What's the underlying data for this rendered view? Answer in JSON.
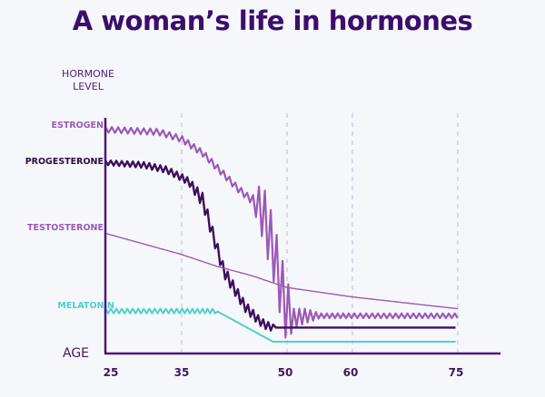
{
  "chart_data": {
    "type": "line",
    "title": "A woman’s life in hormones",
    "ylabel": "HORMONE\nLEVEL",
    "xlabel": "AGE",
    "x_ticks": [
      25,
      35,
      50,
      60,
      75
    ],
    "xlim": [
      25,
      81
    ],
    "ylim": [
      0,
      100
    ],
    "grid": "vertical dashed lines at 35, 50, 60, 75",
    "legend": "labels at left of y-axis",
    "series": [
      {
        "name": "ESTROGEN",
        "color": "#9b59b6",
        "style": "oscillating",
        "points": [
          [
            25,
            95
          ],
          [
            32,
            94
          ],
          [
            35,
            91
          ],
          [
            38,
            85
          ],
          [
            41,
            76
          ],
          [
            43,
            70
          ],
          [
            45,
            65
          ],
          [
            46.5,
            61
          ],
          [
            47,
            55
          ],
          [
            48,
            45
          ],
          [
            49,
            30
          ],
          [
            50,
            18
          ],
          [
            51,
            15
          ],
          [
            53,
            16
          ],
          [
            55,
            16
          ],
          [
            60,
            16
          ],
          [
            75,
            16
          ]
        ],
        "amplitude": [
          [
            25,
            1.2
          ],
          [
            45,
            1.5
          ],
          [
            46.5,
            12
          ],
          [
            50,
            14
          ],
          [
            51,
            4
          ],
          [
            53,
            3
          ],
          [
            55,
            1
          ],
          [
            75,
            1
          ]
        ]
      },
      {
        "name": "PROGESTERONE",
        "color": "#3b0f5c",
        "style": "oscillating",
        "points": [
          [
            25,
            81
          ],
          [
            30,
            80
          ],
          [
            33,
            78
          ],
          [
            36,
            73
          ],
          [
            38,
            65
          ],
          [
            39,
            55
          ],
          [
            40,
            45
          ],
          [
            41,
            35
          ],
          [
            42,
            30
          ],
          [
            43,
            25
          ],
          [
            44,
            20
          ],
          [
            45,
            17
          ],
          [
            46,
            14
          ],
          [
            47,
            12
          ],
          [
            48,
            11
          ],
          [
            48.3,
            11
          ],
          [
            75,
            11
          ]
        ],
        "amplitude": [
          [
            25,
            1
          ],
          [
            36,
            1.5
          ],
          [
            38,
            3
          ],
          [
            45,
            2
          ],
          [
            48,
            1.5
          ],
          [
            48.3,
            0
          ],
          [
            75,
            0
          ]
        ]
      },
      {
        "name": "TESTOSTERONE",
        "color": "#9b59b6",
        "style": "smooth",
        "points": [
          [
            25,
            51
          ],
          [
            35,
            42
          ],
          [
            40,
            37
          ],
          [
            45,
            33
          ],
          [
            50,
            28
          ],
          [
            55,
            26
          ],
          [
            60,
            24
          ],
          [
            75,
            19
          ]
        ]
      },
      {
        "name": "MELATONIN",
        "color": "#4fcfcf",
        "style": "oscillating",
        "points": [
          [
            25,
            18
          ],
          [
            40,
            18
          ],
          [
            48,
            5
          ],
          [
            75,
            5
          ]
        ],
        "amplitude": [
          [
            25,
            1
          ],
          [
            40,
            1
          ],
          [
            40.1,
            0
          ],
          [
            75,
            0
          ]
        ]
      }
    ]
  },
  "labels": {
    "title": "A woman’s life in hormones",
    "ylabel_line1": "HORMONE",
    "ylabel_line2": "LEVEL",
    "age": "AGE",
    "ticks": [
      "25",
      "35",
      "50",
      "60",
      "75"
    ],
    "series": [
      "ESTROGEN",
      "PROGESTERONE",
      "TESTOSTERONE",
      "MELATONIN"
    ]
  },
  "colors": {
    "title": "#3c0d6b",
    "axis": "#4a1a78",
    "grid": "#d6cde6",
    "estrogen": "#9b59b6",
    "progesterone": "#3b0f5c",
    "testosterone": "#9b59b6",
    "melatonin": "#4fcfcf"
  }
}
